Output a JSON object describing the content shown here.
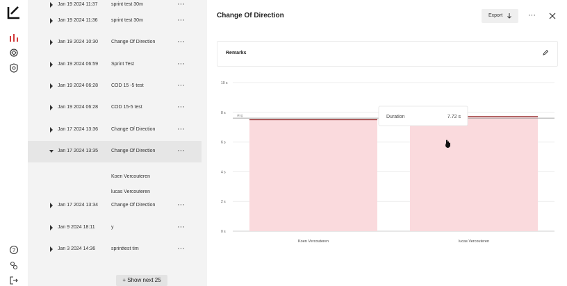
{
  "rail": {
    "logo": "app-logo",
    "top_icons": [
      "bar-chart-icon",
      "athlete-icon",
      "badge-icon"
    ],
    "bottom_icons": [
      "help-icon",
      "settings-icon",
      "logout-icon"
    ],
    "accent": "#d23b3b"
  },
  "sessions": [
    {
      "date": "Jan 19 2024   11:37",
      "name": "sprint test 30m",
      "expanded": false
    },
    {
      "date": "Jan 19 2024   11:36",
      "name": "sprint test 30m",
      "expanded": false
    },
    {
      "date": "Jan 19 2024   10:30",
      "name": "Change Of Direction",
      "expanded": false
    },
    {
      "date": "Jan 19 2024   06:59",
      "name": "Sprint Test",
      "expanded": false
    },
    {
      "date": "Jan 19 2024   06:28",
      "name": "COD 15 -5 test",
      "expanded": false
    },
    {
      "date": "Jan 19 2024   06:28",
      "name": "COD 15-5 test",
      "expanded": false
    },
    {
      "date": "Jan 17 2024   13:36",
      "name": "Change Of Direction",
      "expanded": false
    },
    {
      "date": "Jan 17 2024   13:35",
      "name": "Change Of Direction",
      "expanded": true
    },
    {
      "date": "Jan 17 2024   13:34",
      "name": "Change Of Direction",
      "expanded": false
    },
    {
      "date": "Jan 9 2024   18:11",
      "name": "y",
      "expanded": false
    },
    {
      "date": "Jan 3 2024   14:36",
      "name": "sprinttest tim",
      "expanded": false
    }
  ],
  "expanded_athletes": [
    "Koen Vercouteren",
    "lucas Vercouteren"
  ],
  "more_glyph": "···",
  "show_next_label": "+ Show next 25",
  "detail": {
    "title": "Change Of Direction",
    "export_label": "Export",
    "remarks_label": "Remarks"
  },
  "chart_data": {
    "type": "bar",
    "categories": [
      "Koen Vercouteren",
      "lucas Vercouteren"
    ],
    "values": [
      7.5,
      7.72
    ],
    "y_ticks": [
      "0 s",
      "2 s",
      "4 s",
      "6 s",
      "8 s",
      "10 s"
    ],
    "ylim": [
      0,
      10
    ],
    "avg_label": "Avg",
    "avg_value": 7.61,
    "bar_fill": "#fadadd",
    "bar_stroke": "#8b1a1a",
    "tooltip": {
      "label": "Duration",
      "value": "7.72 s"
    }
  }
}
